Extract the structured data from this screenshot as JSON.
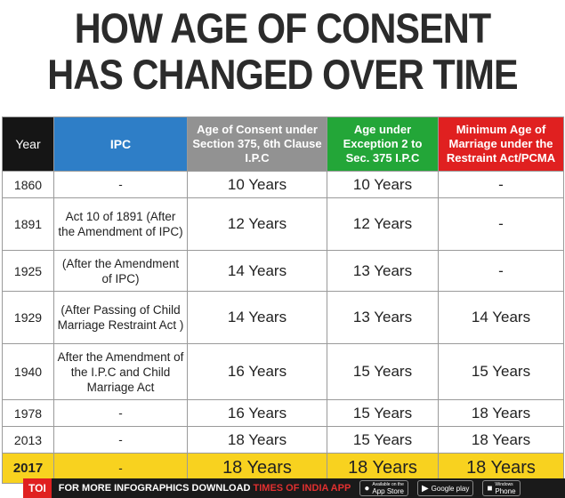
{
  "title": {
    "line1": "HOW AGE OF CONSENT",
    "line2": "HAS CHANGED OVER TIME"
  },
  "table": {
    "headers": {
      "year": "Year",
      "ipc": "IPC",
      "aoc": "Age of Consent under Section 375, 6th Clause I.P.C",
      "exception": "Age under Exception 2 to Sec. 375 I.P.C",
      "marriage": "Minimum Age of Marriage under the Restraint Act/PCMA"
    },
    "rows": [
      {
        "year": "1860",
        "ipc": "-",
        "aoc": "10 Years",
        "exception": "10 Years",
        "marriage": "-"
      },
      {
        "year": "1891",
        "ipc": "Act 10 of 1891 (After the Amendment of IPC)",
        "aoc": "12 Years",
        "exception": "12 Years",
        "marriage": "-"
      },
      {
        "year": "1925",
        "ipc": "(After the Amendment of IPC)",
        "aoc": "14 Years",
        "exception": "13 Years",
        "marriage": "-"
      },
      {
        "year": "1929",
        "ipc": "(After Passing of Child Marriage Restraint Act )",
        "aoc": "14 Years",
        "exception": "13 Years",
        "marriage": "14 Years"
      },
      {
        "year": "1940",
        "ipc": "After the Amendment of the I.P.C and Child Marriage Act",
        "aoc": "16 Years",
        "exception": "15 Years",
        "marriage": "15 Years"
      },
      {
        "year": "1978",
        "ipc": "-",
        "aoc": "16 Years",
        "exception": "15 Years",
        "marriage": "18 Years"
      },
      {
        "year": "2013",
        "ipc": "-",
        "aoc": "18 Years",
        "exception": "15 Years",
        "marriage": "18 Years"
      },
      {
        "year": "2017",
        "ipc": "-",
        "aoc": "18 Years",
        "exception": "18 Years",
        "marriage": "18 Years"
      }
    ]
  },
  "footer": {
    "brand": "TOI",
    "text": "FOR MORE INFOGRAPHICS DOWNLOAD",
    "app": "TIMES OF INDIA APP",
    "appstore_small": "Available on the",
    "appstore": "App Store",
    "googleplay": "Google play",
    "windows_small": "Windows",
    "windows": "Phone"
  },
  "colors": {
    "year_header": "#151515",
    "ipc_header": "#2e7ec7",
    "aoc_header": "#929292",
    "exception_header": "#23a638",
    "marriage_header": "#e02020",
    "highlight_row": "#f8d21f"
  }
}
